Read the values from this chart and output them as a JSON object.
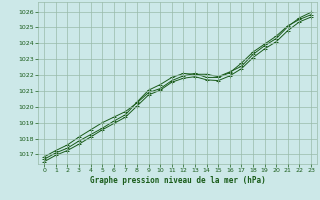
{
  "title": "Graphe pression niveau de la mer (hPa)",
  "bg_color": "#cce8e8",
  "grid_color": "#99bbaa",
  "line_color": "#1a5c1a",
  "xlim": [
    -0.5,
    23.5
  ],
  "ylim": [
    1016.4,
    1026.6
  ],
  "yticks": [
    1017,
    1018,
    1019,
    1020,
    1021,
    1022,
    1023,
    1024,
    1025,
    1026
  ],
  "xticks": [
    0,
    1,
    2,
    3,
    4,
    5,
    6,
    7,
    8,
    9,
    10,
    11,
    12,
    13,
    14,
    15,
    16,
    17,
    18,
    19,
    20,
    21,
    22,
    23
  ],
  "series1": [
    1016.7,
    1017.1,
    1017.4,
    1017.85,
    1018.25,
    1018.65,
    1019.1,
    1019.5,
    1020.3,
    1021.05,
    1021.4,
    1021.85,
    1022.1,
    1022.05,
    1022.05,
    1021.9,
    1022.2,
    1022.55,
    1023.3,
    1023.85,
    1024.3,
    1025.05,
    1025.6,
    1025.95
  ],
  "series2": [
    1016.85,
    1017.25,
    1017.6,
    1018.1,
    1018.55,
    1019.0,
    1019.35,
    1019.7,
    1020.25,
    1020.9,
    1021.15,
    1021.65,
    1021.95,
    1022.1,
    1021.85,
    1021.85,
    1022.15,
    1022.75,
    1023.45,
    1023.95,
    1024.45,
    1025.1,
    1025.5,
    1025.8
  ],
  "series3": [
    1016.55,
    1016.95,
    1017.25,
    1017.65,
    1018.1,
    1018.55,
    1018.95,
    1019.35,
    1020.05,
    1020.75,
    1021.05,
    1021.55,
    1021.8,
    1021.9,
    1021.7,
    1021.65,
    1021.95,
    1022.4,
    1023.1,
    1023.65,
    1024.1,
    1024.8,
    1025.35,
    1025.65
  ]
}
